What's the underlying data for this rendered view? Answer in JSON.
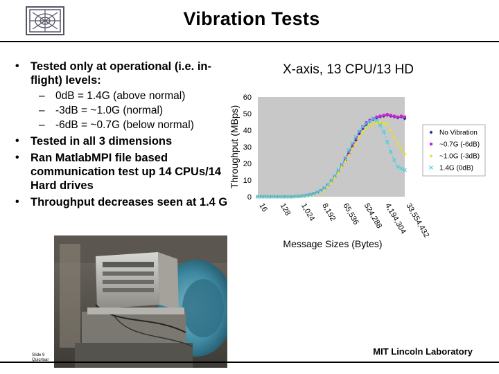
{
  "slide": {
    "title": "Vibration Tests",
    "bullets": [
      {
        "text": "Tested only at operational (i.e. in-flight) levels:"
      },
      {
        "text": "Tested in all 3 dimensions"
      },
      {
        "text": "Ran MatlabMPI file based communication test up 14 CPUs/14 Hard drives"
      },
      {
        "text": "Throughput decreases seen at 1.4 G"
      }
    ],
    "sub_bullets": [
      {
        "dash": "–",
        "text": "0dB = 1.4G (above normal)"
      },
      {
        "dash": "–",
        "text": "-3dB = ~1.0G (normal)"
      },
      {
        "dash": "–",
        "text": "-6dB = ~0.7G (below normal)"
      }
    ],
    "footer_slide_number": "Slide 9",
    "footer_date": "Quicrloar",
    "footer_lab": "MIT Lincoln Laboratory"
  },
  "chart_data": {
    "type": "scatter",
    "title": "X-axis, 13 CPU/13 HD",
    "xlabel": "Message Sizes (Bytes)",
    "ylabel": "Throughput (MBps)",
    "ylim": [
      0,
      60
    ],
    "yticks": [
      0,
      10,
      20,
      30,
      40,
      50,
      60
    ],
    "xtick_labels": [
      "16",
      "128",
      "1,024",
      "8,192",
      "65,536",
      "524,288",
      "4,194,304",
      "33,554,432"
    ],
    "x_log2": [
      4,
      4.5,
      5,
      5.5,
      6,
      6.5,
      7,
      7.5,
      8,
      8.5,
      9,
      9.5,
      10,
      10.5,
      11,
      11.5,
      12,
      12.5,
      13,
      13.5,
      14,
      14.5,
      15,
      15.5,
      16,
      16.5,
      17,
      17.5,
      18,
      18.5,
      19,
      19.5,
      20,
      20.5,
      21,
      21.5,
      22,
      22.5,
      23,
      23.5,
      24,
      24.5,
      25
    ],
    "legend_position": "right",
    "grid": false,
    "series": [
      {
        "name": "No Vibration",
        "color": "#1f2aa0",
        "marker": "diamond",
        "values": [
          0,
          0,
          0,
          0,
          0,
          0,
          0,
          0,
          0,
          0,
          0,
          0.2,
          0.3,
          0.5,
          0.8,
          1.2,
          1.8,
          2.5,
          3.5,
          5,
          7,
          9.5,
          12,
          15,
          18.5,
          22,
          26,
          30,
          34,
          38,
          41,
          43.5,
          45.5,
          46.5,
          47.5,
          48,
          48.5,
          49,
          48.5,
          48,
          47.5,
          48,
          47
        ]
      },
      {
        "name": "~0.7G (-6dB)",
        "color": "#d020d0",
        "marker": "square",
        "values": [
          0,
          0,
          0,
          0,
          0,
          0,
          0,
          0,
          0,
          0,
          0,
          0.2,
          0.3,
          0.5,
          0.8,
          1.1,
          1.7,
          2.4,
          3.4,
          5,
          6.8,
          9.2,
          12,
          15.5,
          19,
          23,
          27,
          31,
          35,
          39,
          42,
          44.5,
          46,
          47,
          48,
          48.5,
          49,
          49.5,
          49,
          48.5,
          48,
          48.5,
          48
        ]
      },
      {
        "name": "~1.0G (-3dB)",
        "color": "#e8e020",
        "marker": "triangle",
        "values": [
          0,
          0,
          0,
          0,
          0,
          0,
          0,
          0,
          0,
          0,
          0,
          0.2,
          0.3,
          0.5,
          0.7,
          1,
          1.6,
          2.3,
          3.2,
          4.6,
          6.5,
          8.8,
          11.5,
          14.5,
          18,
          21.5,
          25,
          29,
          32,
          36,
          39,
          41.5,
          43,
          44,
          44.5,
          45,
          44.5,
          44,
          40,
          36,
          32,
          29,
          26
        ]
      },
      {
        "name": "1.4G (0dB)",
        "color": "#40d0e0",
        "marker": "cross",
        "values": [
          0,
          0,
          0,
          0,
          0,
          0,
          0,
          0,
          0,
          0,
          0,
          0.2,
          0.3,
          0.5,
          0.8,
          1.2,
          1.8,
          2.6,
          3.7,
          5.2,
          7.2,
          9.8,
          12.5,
          16,
          19.5,
          23.5,
          28,
          32,
          36,
          39.5,
          42,
          44,
          45.5,
          47,
          46,
          43,
          39,
          33,
          27,
          22,
          18,
          17,
          16
        ]
      }
    ]
  },
  "photo": {
    "description_icon": "vibration-table-photo"
  }
}
